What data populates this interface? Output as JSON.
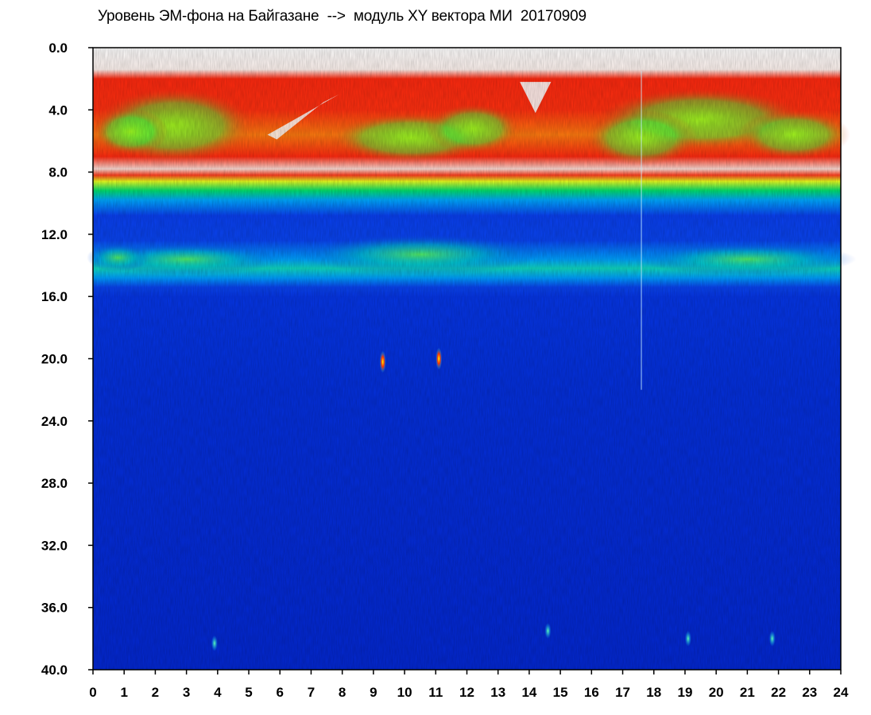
{
  "chart_data": {
    "type": "heatmap",
    "title": "Уровень ЭМ-фона на Байгазане  -->  модуль XY вектора МИ  20170909",
    "x_axis": {
      "range": [
        0,
        24
      ],
      "ticks": [
        "0",
        "1",
        "2",
        "3",
        "4",
        "5",
        "6",
        "7",
        "8",
        "9",
        "10",
        "11",
        "12",
        "13",
        "14",
        "15",
        "16",
        "17",
        "18",
        "19",
        "20",
        "21",
        "22",
        "23",
        "24"
      ]
    },
    "y_axis": {
      "range": [
        0,
        40
      ],
      "inverted": true,
      "ticks": [
        "0.0",
        "4.0",
        "8.0",
        "12.0",
        "16.0",
        "20.0",
        "24.0",
        "28.0",
        "32.0",
        "36.0",
        "40.0"
      ]
    },
    "colormap": [
      "#0000cc",
      "#0033ff",
      "#00ccff",
      "#00ff66",
      "#ccff00",
      "#ffff00",
      "#ff3300",
      "#ff0000"
    ],
    "grid": false,
    "legend": "none",
    "bands": [
      {
        "y_range": [
          2,
          8.3
        ],
        "level": "high"
      },
      {
        "y_range": [
          8.3,
          9.5
        ],
        "level": "medium"
      },
      {
        "y_range": [
          12.5,
          14.8
        ],
        "level": "medium"
      },
      {
        "y_range": [
          16,
          40
        ],
        "level": "low"
      }
    ],
    "spots": [
      {
        "x": 9.3,
        "y": 20.2,
        "level": "high"
      },
      {
        "x": 11.1,
        "y": 20.0,
        "level": "high"
      },
      {
        "x": 3.9,
        "y": 38.3,
        "level": "medium"
      },
      {
        "x": 14.6,
        "y": 37.5,
        "level": "medium"
      },
      {
        "x": 19.1,
        "y": 38.0,
        "level": "medium"
      },
      {
        "x": 21.8,
        "y": 38.0,
        "level": "medium"
      }
    ]
  }
}
